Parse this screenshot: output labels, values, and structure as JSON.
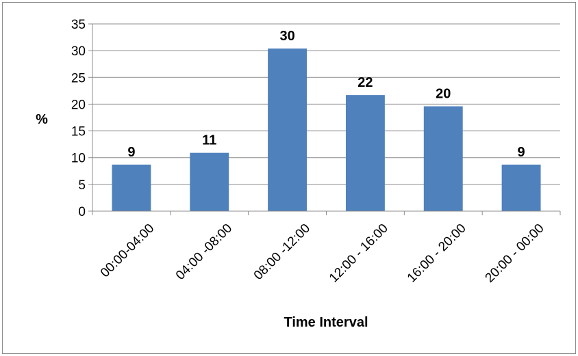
{
  "chart_data": {
    "type": "bar",
    "title": "",
    "xlabel": "Time Interval",
    "ylabel": "%",
    "categories": [
      "00:00-04:00",
      "04:00 -08:00",
      "08:00 -12:00",
      "12:00 - 16:00",
      "16:00 - 20:00",
      "20:00 - 00:00"
    ],
    "values": [
      8.7,
      10.9,
      30.4,
      21.7,
      19.6,
      8.7
    ],
    "data_labels": [
      "9",
      "11",
      "30",
      "22",
      "20",
      "9"
    ],
    "ylim": [
      0,
      35
    ],
    "yticks": [
      "0",
      "5",
      "10",
      "15",
      "20",
      "25",
      "30",
      "35"
    ],
    "grid": true,
    "legend": "none",
    "bar_color": "#4f81bd"
  }
}
